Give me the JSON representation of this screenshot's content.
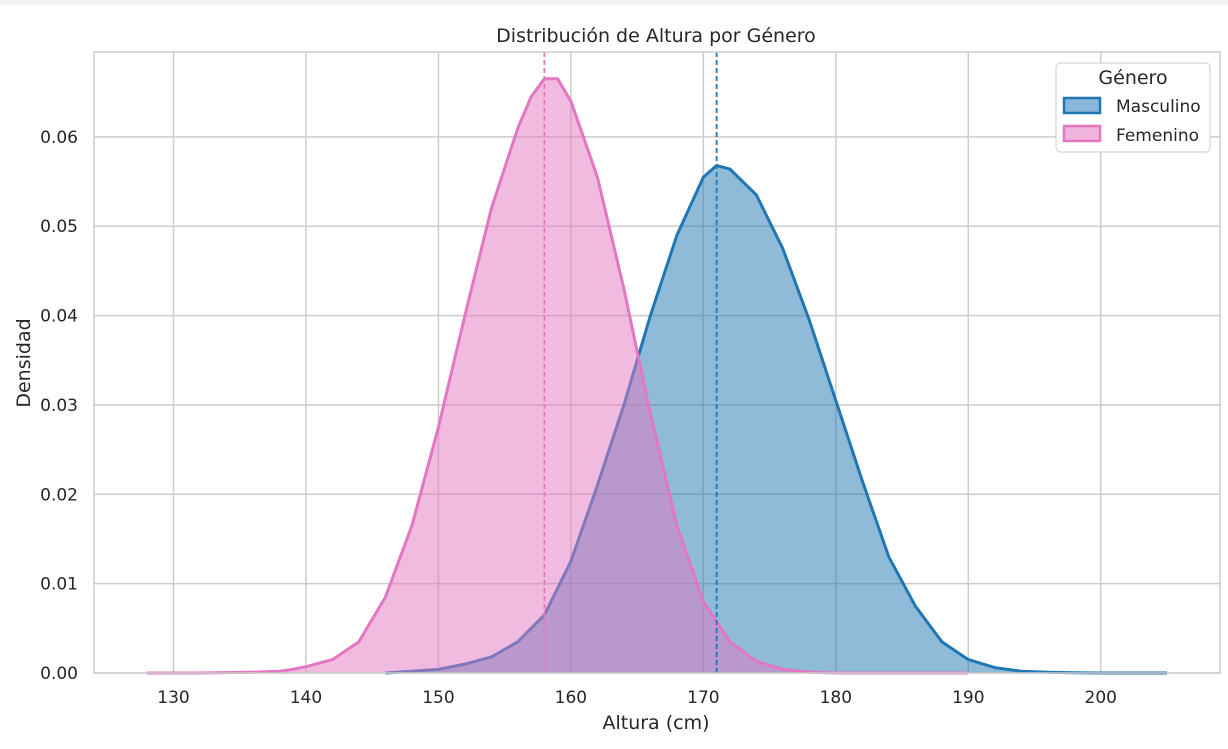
{
  "chart_data": {
    "type": "area",
    "title": "Distribución de Altura por Género",
    "xlabel": "Altura (cm)",
    "ylabel": "Densidad",
    "xlim": [
      124,
      209
    ],
    "ylim": [
      0,
      0.0695
    ],
    "x_ticks": [
      "130",
      "140",
      "150",
      "160",
      "170",
      "180",
      "190",
      "200"
    ],
    "x_tick_values": [
      130,
      140,
      150,
      160,
      170,
      180,
      190,
      200
    ],
    "y_ticks": [
      "0.00",
      "0.01",
      "0.02",
      "0.03",
      "0.04",
      "0.05",
      "0.06"
    ],
    "y_tick_values": [
      0,
      0.01,
      0.02,
      0.03,
      0.04,
      0.05,
      0.06
    ],
    "grid": true,
    "legend": {
      "title": "Género",
      "placement": "top-right"
    },
    "series": [
      {
        "name": "Masculino",
        "color": "#1f77b4",
        "fill": "#8ab6d9",
        "mean": 171,
        "x": [
          146,
          150,
          152,
          154,
          156,
          158,
          160,
          162,
          164,
          166,
          168,
          170,
          171,
          172,
          174,
          176,
          178,
          180,
          182,
          184,
          186,
          188,
          190,
          192,
          194,
          196,
          198,
          200,
          202,
          205
        ],
        "y": [
          0.0,
          0.0004,
          0.001,
          0.0018,
          0.0035,
          0.0065,
          0.0125,
          0.021,
          0.03,
          0.04,
          0.049,
          0.0555,
          0.0568,
          0.0564,
          0.0535,
          0.0475,
          0.0395,
          0.0305,
          0.0215,
          0.013,
          0.0075,
          0.0035,
          0.0015,
          0.0006,
          0.0002,
          8e-05,
          3e-05,
          0.0,
          0.0,
          0.0
        ]
      },
      {
        "name": "Femenino",
        "color": "#e377c2",
        "fill": "#f0b4dd",
        "mean": 158,
        "x": [
          128,
          132,
          136,
          138,
          139,
          140,
          142,
          144,
          146,
          148,
          150,
          152,
          154,
          156,
          157,
          158,
          159,
          160,
          162,
          164,
          166,
          168,
          170,
          172,
          174,
          176,
          178,
          180,
          182,
          186,
          190
        ],
        "y": [
          0.0,
          0.0,
          0.0001,
          0.0002,
          0.0004,
          0.0007,
          0.0015,
          0.0035,
          0.0085,
          0.0165,
          0.0275,
          0.04,
          0.052,
          0.061,
          0.0645,
          0.0665,
          0.0665,
          0.064,
          0.0555,
          0.043,
          0.029,
          0.0165,
          0.008,
          0.0035,
          0.0013,
          0.0004,
          0.0001,
          0.0,
          0.0,
          0.0,
          0.0
        ]
      }
    ]
  }
}
